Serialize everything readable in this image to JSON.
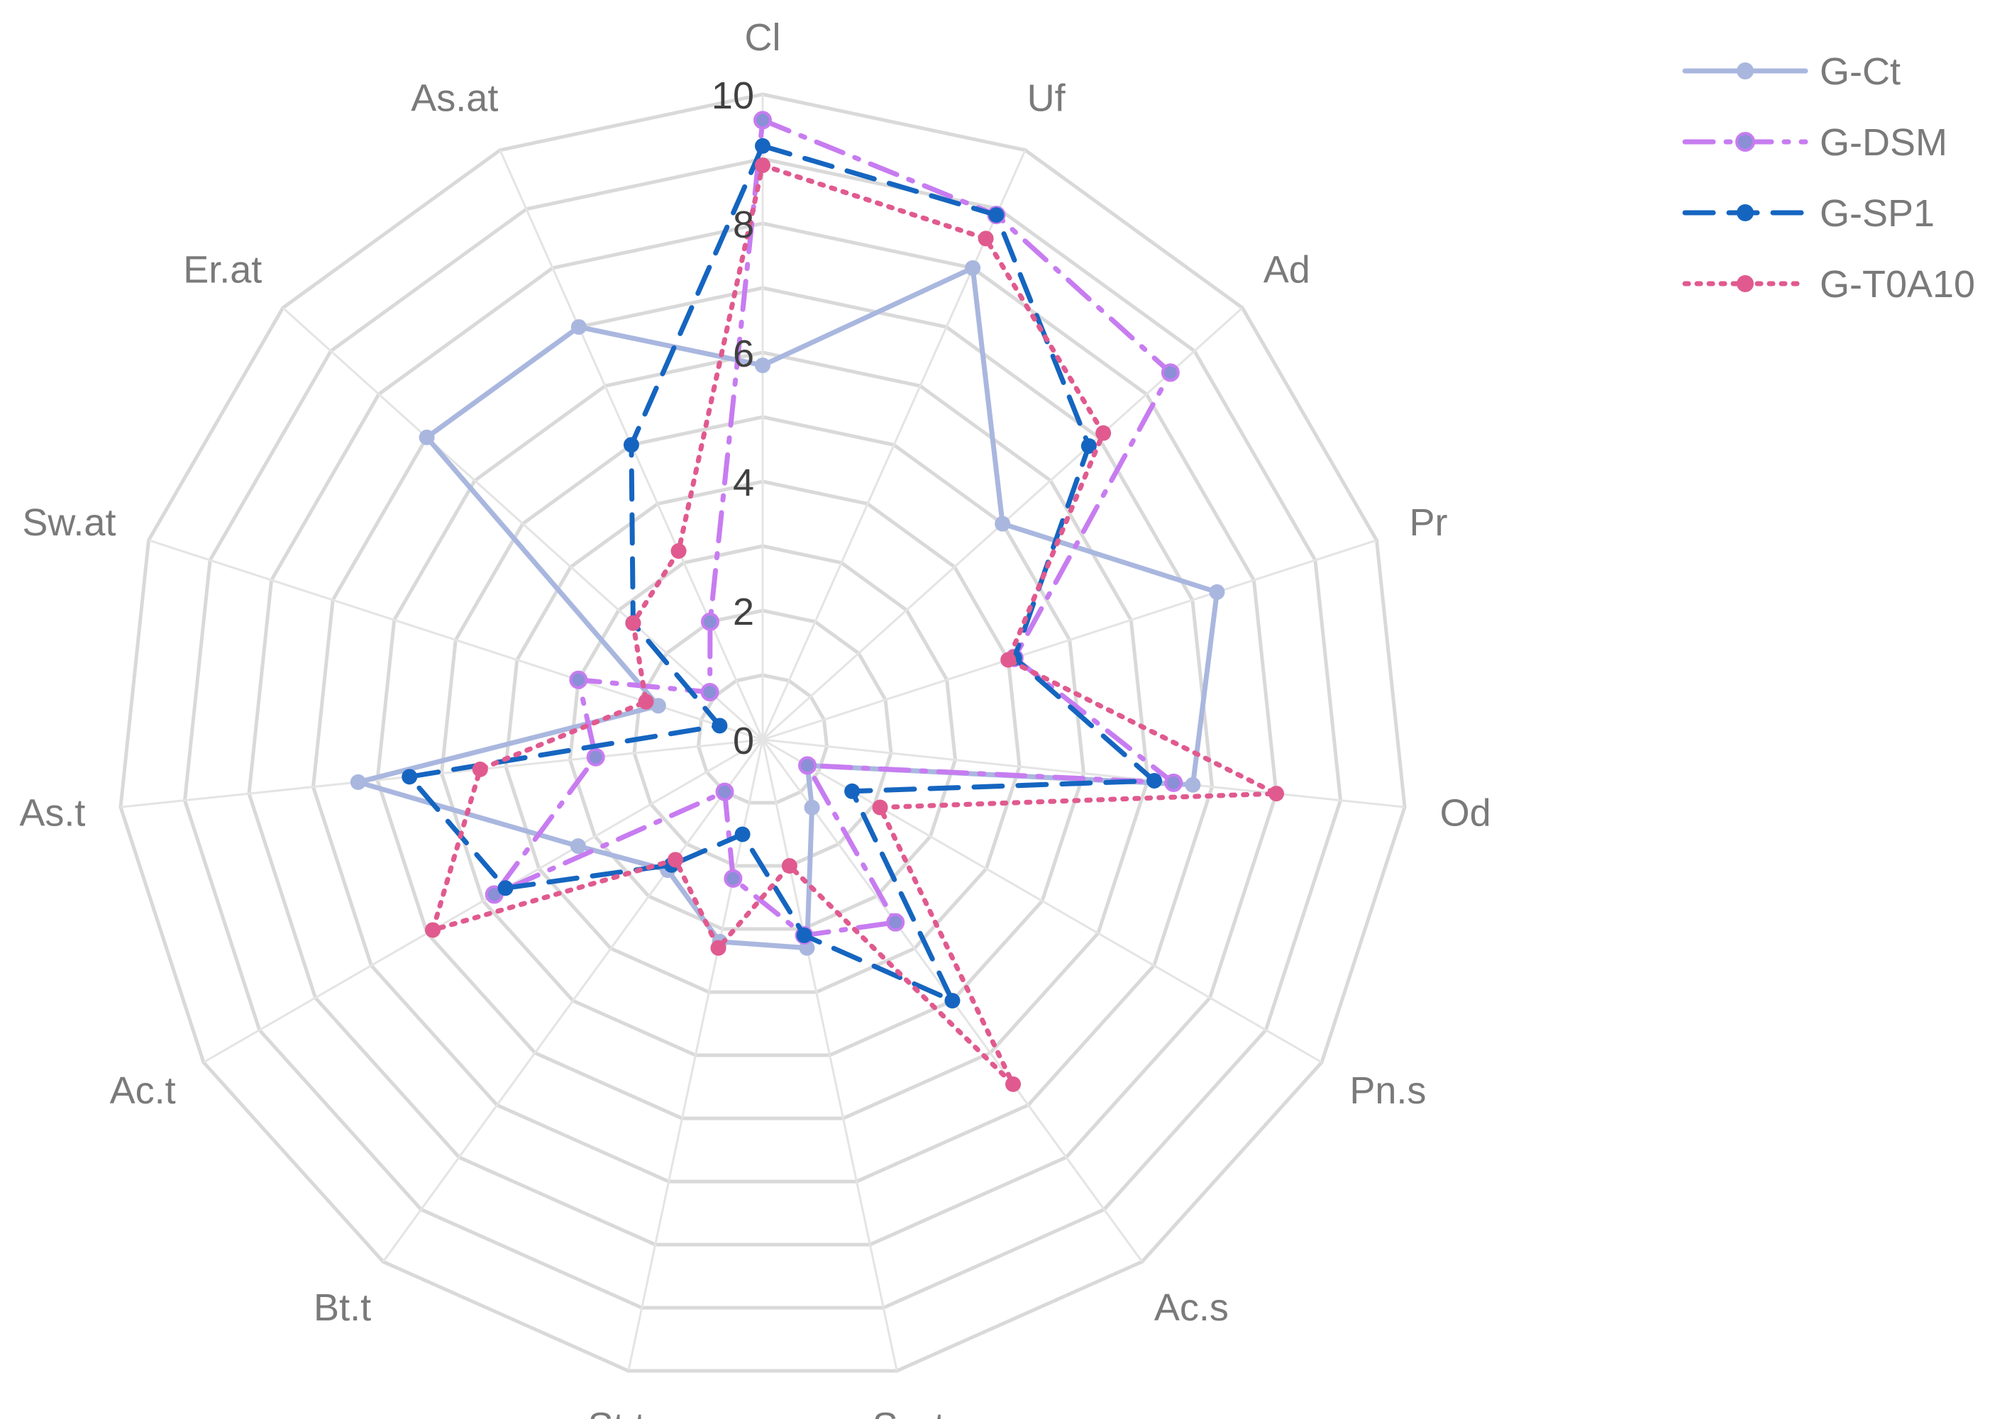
{
  "chart_data": {
    "type": "radar",
    "axes": [
      "Cl",
      "Uf",
      "Ad",
      "Pr",
      "Od",
      "Pn.s",
      "Ac.s",
      "Sw.t",
      "St.t",
      "Bt.t",
      "Ac.t",
      "As.t",
      "Sw.at",
      "Er.at",
      "As.at"
    ],
    "range": [
      0,
      10
    ],
    "ticks": [
      0,
      2,
      4,
      6,
      8,
      10
    ],
    "tick_labels": [
      "0",
      "2",
      "4",
      "6",
      "8",
      "10"
    ],
    "grid": true,
    "legend_position": "top-right",
    "series": [
      {
        "name": "G-Ct",
        "color": "#a9b7df",
        "style": "solid",
        "values": [
          5.8,
          8.0,
          5.0,
          7.4,
          6.7,
          0.8,
          1.3,
          3.3,
          3.2,
          2.5,
          3.3,
          6.3,
          1.7,
          7.0,
          7.0
        ]
      },
      {
        "name": "G-DSM",
        "color": "#c77cf0",
        "style": "dash-dot",
        "values": [
          9.6,
          8.9,
          8.5,
          4.1,
          6.4,
          0.8,
          3.5,
          3.1,
          2.2,
          1.0,
          4.8,
          2.6,
          3.0,
          1.1,
          2.0
        ]
      },
      {
        "name": "G-SP1",
        "color": "#1565c0",
        "style": "dash",
        "values": [
          9.2,
          8.9,
          6.8,
          4.1,
          6.1,
          1.6,
          5.0,
          3.1,
          1.5,
          2.4,
          4.6,
          5.5,
          0.7,
          2.7,
          5.0
        ]
      },
      {
        "name": "G-T0A10",
        "color": "#e05a8f",
        "style": "dot",
        "values": [
          8.9,
          8.5,
          7.1,
          4.0,
          8.0,
          2.1,
          6.6,
          2.0,
          3.3,
          2.3,
          5.9,
          4.4,
          1.9,
          2.7,
          3.2
        ]
      }
    ]
  }
}
